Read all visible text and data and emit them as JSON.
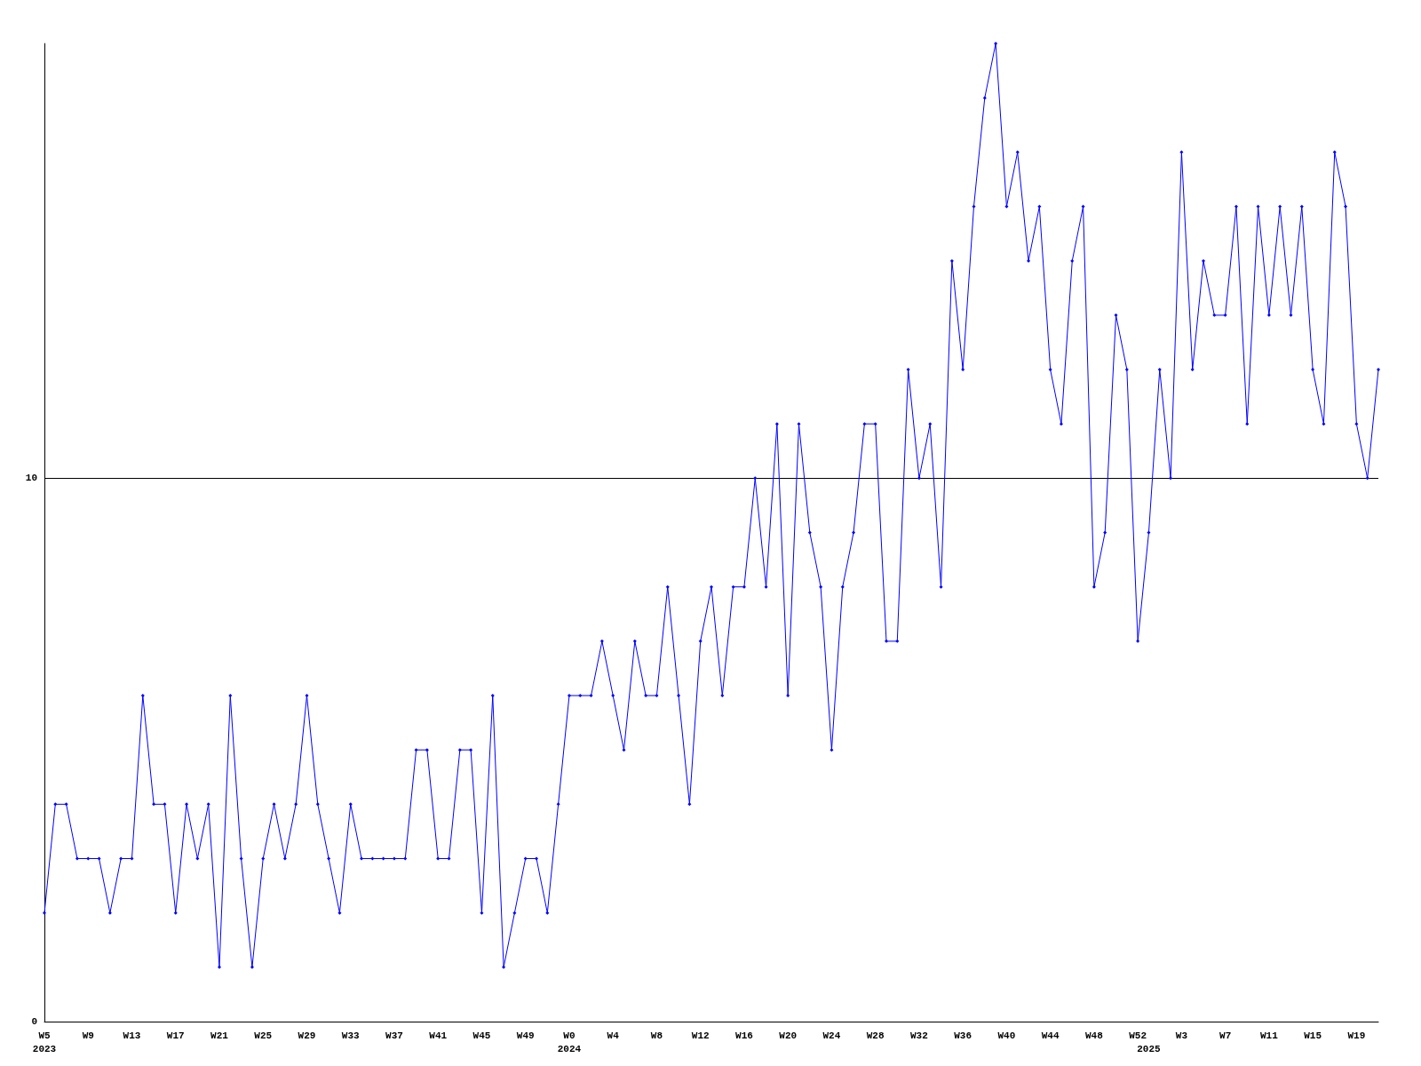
{
  "chart_data": {
    "type": "line",
    "categories": [
      "W5\n2023",
      null,
      null,
      null,
      "W9",
      null,
      null,
      null,
      "W13",
      null,
      null,
      null,
      "W17",
      null,
      null,
      null,
      "W21",
      null,
      null,
      null,
      "W25",
      null,
      null,
      null,
      "W29",
      null,
      null,
      null,
      "W33",
      null,
      null,
      null,
      "W37",
      null,
      null,
      null,
      "W41",
      null,
      null,
      null,
      "W45",
      null,
      null,
      null,
      "W49",
      null,
      null,
      null,
      "W0\n2024",
      null,
      null,
      null,
      "W4",
      null,
      null,
      null,
      "W8",
      null,
      null,
      null,
      "W12",
      null,
      null,
      null,
      "W16",
      null,
      null,
      null,
      "W20",
      null,
      null,
      null,
      "W24",
      null,
      null,
      null,
      "W28",
      null,
      null,
      null,
      "W32",
      null,
      null,
      null,
      "W36",
      null,
      null,
      null,
      "W40",
      null,
      null,
      null,
      "W44",
      null,
      null,
      null,
      "W48",
      null,
      null,
      null,
      "W52",
      "\n2025",
      null,
      null,
      "W3",
      null,
      null,
      null,
      "W7",
      null,
      null,
      null,
      "W11",
      null,
      null,
      null,
      "W15",
      null,
      null,
      null,
      "W19",
      null,
      null
    ],
    "series": [
      {
        "color": "#0000ff",
        "values": [
          2,
          4,
          4,
          3,
          3,
          3,
          2,
          3,
          3,
          6,
          4,
          4,
          2,
          4,
          3,
          4,
          1,
          6,
          3,
          1,
          3,
          4,
          3,
          4,
          6,
          4,
          3,
          2,
          4,
          3,
          3,
          3,
          3,
          3,
          5,
          5,
          3,
          3,
          5,
          5,
          2,
          6,
          1,
          2,
          3,
          3,
          2,
          4,
          6,
          6,
          6,
          7,
          6,
          5,
          7,
          6,
          6,
          8,
          6,
          4,
          7,
          8,
          6,
          8,
          8,
          10,
          8,
          11,
          6,
          11,
          9,
          8,
          5,
          8,
          9,
          11,
          11,
          7,
          7,
          12,
          10,
          11,
          8,
          14,
          12,
          15,
          17,
          18,
          15,
          16,
          14,
          15,
          12,
          11,
          14,
          15,
          8,
          9,
          13,
          12,
          7,
          9,
          12,
          10,
          16,
          12,
          14,
          13,
          13,
          15,
          11,
          15,
          13,
          15,
          13,
          15,
          12,
          11,
          16,
          15,
          11,
          10,
          12
        ]
      }
    ],
    "ylim": [
      0,
      18
    ],
    "yticks": [
      0,
      10
    ],
    "grid": "y",
    "marker": "diamond",
    "line_style": "solid"
  }
}
